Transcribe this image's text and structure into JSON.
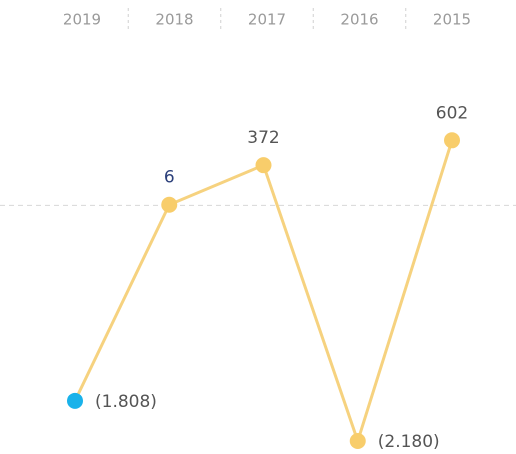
{
  "chart_data": {
    "type": "line",
    "categories": [
      "2019",
      "2018",
      "2017",
      "2016",
      "2015"
    ],
    "values": [
      -1808,
      6,
      372,
      -2180,
      602
    ],
    "value_labels": [
      "(1.808)",
      "6",
      "372",
      "(2.180)",
      "602"
    ],
    "color": "#f6d27f",
    "point_colors": [
      "#19b2ea",
      "#f8cd6b",
      "#f8cd6b",
      "#f8cd6b",
      "#f8cd6b"
    ],
    "label_colors": [
      "#555555",
      "#2b3f7a",
      "#555555",
      "#555555",
      "#555555"
    ],
    "ylim": [
      -2300,
      1900
    ]
  }
}
